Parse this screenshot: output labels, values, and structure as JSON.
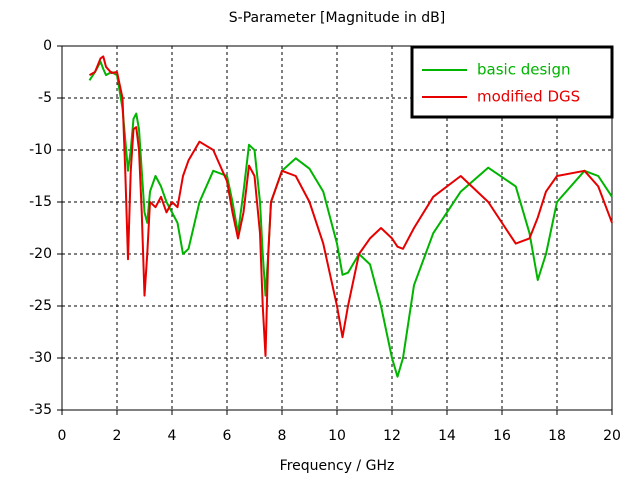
{
  "chart_data": {
    "type": "line",
    "title": "S-Parameter [Magnitude in dB]",
    "x_label": "Frequency / GHz",
    "x": [
      1.0,
      1.2,
      1.4,
      1.5,
      1.6,
      1.8,
      2.0,
      2.2,
      2.3,
      2.4,
      2.5,
      2.6,
      2.7,
      2.8,
      2.9,
      3.0,
      3.1,
      3.2,
      3.4,
      3.6,
      3.8,
      4.0,
      4.2,
      4.4,
      4.6,
      5.0,
      5.5,
      6.0,
      6.2,
      6.4,
      6.6,
      6.8,
      7.0,
      7.2,
      7.3,
      7.4,
      7.5,
      7.6,
      8.0,
      8.5,
      9.0,
      9.5,
      10.0,
      10.2,
      10.4,
      10.8,
      11.2,
      11.6,
      12.0,
      12.2,
      12.4,
      12.8,
      13.5,
      14.5,
      15.5,
      16.5,
      17.0,
      17.3,
      17.6,
      18.0,
      19.0,
      19.5,
      20.0
    ],
    "series": [
      {
        "name": "basic design",
        "color": "#00b400",
        "values": [
          -3.3,
          -2.5,
          -1.5,
          -2.2,
          -2.8,
          -2.5,
          -2.8,
          -6,
          -9,
          -12,
          -10,
          -7,
          -6.5,
          -8,
          -12,
          -16,
          -17,
          -14,
          -12.5,
          -13.5,
          -15,
          -16,
          -17,
          -20,
          -19.5,
          -15,
          -12,
          -12.5,
          -15,
          -18,
          -14,
          -9.5,
          -10,
          -15,
          -20,
          -24,
          -20,
          -15,
          -12,
          -10.8,
          -11.8,
          -14,
          -19,
          -22,
          -21.8,
          -20,
          -21,
          -25,
          -30,
          -31.8,
          -30,
          -23,
          -18,
          -14,
          -11.7,
          -13.5,
          -18,
          -22.5,
          -20,
          -15,
          -12,
          -12.5,
          -14.5
        ]
      },
      {
        "name": "modified DGS",
        "color": "#e60000",
        "values": [
          -2.8,
          -2.5,
          -1.2,
          -1.0,
          -2,
          -2.6,
          -2.5,
          -5,
          -12,
          -20.5,
          -12,
          -8,
          -7.8,
          -10,
          -16,
          -24,
          -20,
          -15,
          -15.5,
          -14.5,
          -16,
          -15,
          -15.5,
          -12.5,
          -11,
          -9.2,
          -10,
          -13,
          -16,
          -18.5,
          -16,
          -11.5,
          -12.5,
          -18,
          -25,
          -29.8,
          -20,
          -15,
          -12,
          -12.5,
          -15,
          -19,
          -25,
          -28,
          -25,
          -20,
          -18.5,
          -17.5,
          -18.5,
          -19.3,
          -19.5,
          -17.5,
          -14.5,
          -12.5,
          -15,
          -19,
          -18.5,
          -16.5,
          -14,
          -12.5,
          -12,
          -13.5,
          -17
        ]
      }
    ],
    "xlim": [
      0,
      20
    ],
    "xticks": [
      0,
      2,
      4,
      6,
      8,
      10,
      12,
      14,
      16,
      18,
      20
    ],
    "ylim": [
      -35,
      0
    ],
    "yticks": [
      0,
      -5,
      -10,
      -15,
      -20,
      -25,
      -30,
      -35
    ],
    "grid": true,
    "legend": "upper right"
  }
}
